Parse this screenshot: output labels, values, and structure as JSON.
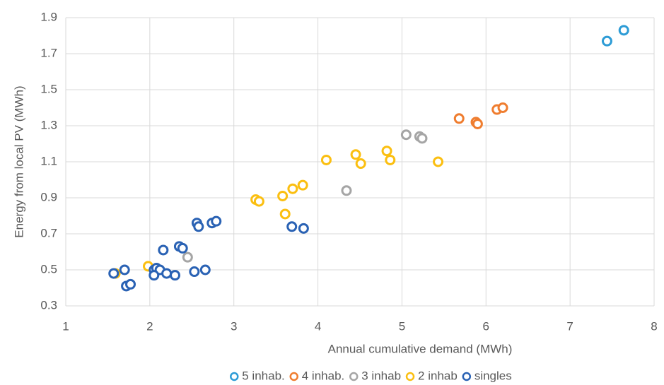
{
  "chart_data": {
    "type": "scatter",
    "xlabel": "Annual cumulative demand (MWh)",
    "ylabel": "Energy from local PV (MWh)",
    "xlim": [
      1,
      8
    ],
    "xticks": [
      1,
      2,
      3,
      4,
      5,
      6,
      7,
      8
    ],
    "ylim": [
      0.3,
      1.9
    ],
    "yticks": [
      0.3,
      0.5,
      0.7,
      0.9,
      1.1,
      1.3,
      1.5,
      1.7,
      1.9
    ],
    "grid": true,
    "legend": "bottom",
    "series": [
      {
        "name": "5 inhab.",
        "color": "#2e9cd6",
        "x": [
          7.44,
          7.64
        ],
        "values": [
          1.77,
          1.83
        ]
      },
      {
        "name": "4 inhab.",
        "color": "#ef7d2f",
        "x": [
          5.68,
          5.88,
          5.9,
          6.13,
          6.2
        ],
        "values": [
          1.34,
          1.32,
          1.31,
          1.39,
          1.4
        ]
      },
      {
        "name": "3 inhab",
        "color": "#a5a5a5",
        "x": [
          2.45,
          4.34,
          5.05,
          5.21,
          5.24
        ],
        "values": [
          0.57,
          0.94,
          1.25,
          1.24,
          1.23
        ]
      },
      {
        "name": "2 inhab",
        "color": "#fbbf11",
        "x": [
          1.59,
          1.98,
          3.26,
          3.3,
          3.58,
          3.61,
          3.7,
          3.82,
          4.1,
          4.45,
          4.51,
          4.82,
          4.86,
          5.43
        ],
        "values": [
          0.48,
          0.52,
          0.89,
          0.88,
          0.91,
          0.81,
          0.95,
          0.97,
          1.11,
          1.14,
          1.09,
          1.16,
          1.11,
          1.1
        ]
      },
      {
        "name": "singles",
        "color": "#2a62b4",
        "x": [
          1.57,
          1.7,
          1.72,
          1.77,
          2.05,
          2.08,
          2.12,
          2.05,
          2.16,
          2.2,
          2.3,
          2.35,
          2.39,
          2.56,
          2.58,
          2.74,
          2.79,
          2.53,
          2.66,
          3.69,
          3.83
        ],
        "values": [
          0.48,
          0.5,
          0.41,
          0.42,
          0.5,
          0.51,
          0.5,
          0.47,
          0.61,
          0.48,
          0.47,
          0.63,
          0.62,
          0.76,
          0.74,
          0.76,
          0.77,
          0.49,
          0.5,
          0.74,
          0.73
        ]
      }
    ]
  }
}
